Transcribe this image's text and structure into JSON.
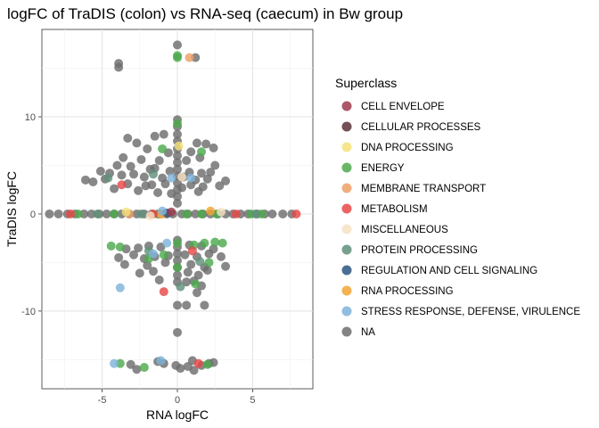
{
  "chart_data": {
    "type": "scatter",
    "title": "logFC of TraDIS (colon) vs RNA-seq (caecum) in Bw group",
    "xlabel": "RNA logFC",
    "ylabel": "TraDIS logFC",
    "xlim": [
      -9,
      9
    ],
    "ylim": [
      -18,
      19
    ],
    "xticks": [
      -5,
      0,
      5
    ],
    "yticks": [
      -10,
      0,
      10
    ],
    "xtick_labels": [
      "-5",
      "0",
      "5"
    ],
    "ytick_labels": [
      "-10",
      "0",
      "10"
    ],
    "grid": true,
    "legend": {
      "title": "Superclass",
      "position": "right",
      "entries": [
        {
          "name": "CELL ENVELOPE",
          "color": "#9E3A4D"
        },
        {
          "name": "CELLULAR PROCESSES",
          "color": "#5A3038"
        },
        {
          "name": "DNA PROCESSING",
          "color": "#F4E27A"
        },
        {
          "name": "ENERGY",
          "color": "#4DAA4D"
        },
        {
          "name": "MEMBRANE TRANSPORT",
          "color": "#EDA068"
        },
        {
          "name": "METABOLISM",
          "color": "#E84848"
        },
        {
          "name": "MISCELLANEOUS",
          "color": "#F5E3C3"
        },
        {
          "name": "PROTEIN PROCESSING",
          "color": "#5F917A"
        },
        {
          "name": "REGULATION AND CELL SIGNALING",
          "color": "#2B5580"
        },
        {
          "name": "RNA PROCESSING",
          "color": "#F2A534"
        },
        {
          "name": "STRESS RESPONSE, DEFENSE, VIRULENCE",
          "color": "#7FB3DB"
        },
        {
          "name": "NA",
          "color": "#6E6E6E"
        }
      ]
    },
    "series": [
      {
        "name": "NA",
        "points": [
          [
            0,
            17.4
          ],
          [
            -3.9,
            15.1
          ],
          [
            -3.9,
            15.5
          ],
          [
            1.2,
            16.1
          ],
          [
            0,
            9.7
          ],
          [
            0,
            9.0
          ],
          [
            0,
            8.2
          ],
          [
            0,
            7.5
          ],
          [
            0,
            6.7
          ],
          [
            0,
            6.0
          ],
          [
            0,
            5.3
          ],
          [
            0,
            4.6
          ],
          [
            0,
            3.9
          ],
          [
            0,
            3.2
          ],
          [
            0,
            2.5
          ],
          [
            0,
            1.8
          ],
          [
            0,
            1.1
          ],
          [
            -3.3,
            7.8
          ],
          [
            -2.7,
            7.3
          ],
          [
            -1.5,
            8.0
          ],
          [
            -0.9,
            8.2
          ],
          [
            1.3,
            7.3
          ],
          [
            1.9,
            7.2
          ],
          [
            2.4,
            6.8
          ],
          [
            -2.0,
            6.7
          ],
          [
            0.9,
            6.4
          ],
          [
            -0.6,
            6.3
          ],
          [
            -3.6,
            5.8
          ],
          [
            -2.4,
            5.6
          ],
          [
            -1.2,
            5.5
          ],
          [
            0.6,
            5.5
          ],
          [
            1.5,
            5.8
          ],
          [
            2.5,
            5.0
          ],
          [
            -4.0,
            5.0
          ],
          [
            -3.1,
            4.9
          ],
          [
            -1.8,
            4.6
          ],
          [
            -0.5,
            4.4
          ],
          [
            0.8,
            4.3
          ],
          [
            1.6,
            4.2
          ],
          [
            2.2,
            4.3
          ],
          [
            -5.1,
            4.4
          ],
          [
            -4.5,
            4.2
          ],
          [
            -3.7,
            4.0
          ],
          [
            -2.9,
            4.1
          ],
          [
            -2.2,
            3.8
          ],
          [
            -1.0,
            3.7
          ],
          [
            0.4,
            3.8
          ],
          [
            1.2,
            3.5
          ],
          [
            2.0,
            3.6
          ],
          [
            -5.6,
            3.3
          ],
          [
            -4.8,
            3.6
          ],
          [
            -3.3,
            3.1
          ],
          [
            -1.7,
            3.0
          ],
          [
            -0.8,
            3.1
          ],
          [
            0.9,
            3.0
          ],
          [
            1.7,
            2.8
          ],
          [
            -4.2,
            2.6
          ],
          [
            -2.6,
            2.4
          ],
          [
            -1.3,
            2.2
          ],
          [
            -0.4,
            2.1
          ],
          [
            1.4,
            2.3
          ],
          [
            2.8,
            2.9
          ],
          [
            3.2,
            3.4
          ],
          [
            -6.1,
            3.5
          ],
          [
            -2.1,
            2.9
          ],
          [
            -1.5,
            4.7
          ],
          [
            0.3,
            2.7
          ],
          [
            -8.5,
            0
          ],
          [
            -7.9,
            0
          ],
          [
            -7.3,
            0
          ],
          [
            -6.8,
            0
          ],
          [
            -6.2,
            0
          ],
          [
            -5.7,
            0
          ],
          [
            -5.2,
            0
          ],
          [
            -4.7,
            0
          ],
          [
            -4.2,
            0
          ],
          [
            -3.7,
            0
          ],
          [
            -3.2,
            0
          ],
          [
            -2.7,
            0
          ],
          [
            -2.2,
            0
          ],
          [
            -1.7,
            0
          ],
          [
            -1.2,
            0
          ],
          [
            -0.7,
            0
          ],
          [
            -0.3,
            0
          ],
          [
            0.3,
            0
          ],
          [
            0.7,
            0
          ],
          [
            1.2,
            0
          ],
          [
            1.7,
            0
          ],
          [
            2.2,
            0
          ],
          [
            2.7,
            0
          ],
          [
            3.2,
            0
          ],
          [
            3.7,
            0
          ],
          [
            4.2,
            0
          ],
          [
            4.7,
            0
          ],
          [
            5.3,
            0
          ],
          [
            5.8,
            0
          ],
          [
            6.3,
            0
          ],
          [
            7.0,
            0
          ],
          [
            7.6,
            0
          ],
          [
            0,
            -2.7
          ],
          [
            0,
            -3.4
          ],
          [
            0,
            -4.1
          ],
          [
            0,
            -4.8
          ],
          [
            0,
            -5.5
          ],
          [
            0,
            -6.3
          ],
          [
            0,
            -7.0
          ],
          [
            0,
            -9.4
          ],
          [
            0,
            -12.2
          ],
          [
            -3.4,
            -3.6
          ],
          [
            -2.6,
            -3.5
          ],
          [
            -1.9,
            -3.3
          ],
          [
            -1.1,
            -3.4
          ],
          [
            0.8,
            -3.2
          ],
          [
            1.6,
            -3.3
          ],
          [
            2.4,
            -3.6
          ],
          [
            -3.9,
            -4.5
          ],
          [
            -2.9,
            -4.2
          ],
          [
            -2.2,
            -4.6
          ],
          [
            -1.5,
            -4.4
          ],
          [
            -0.6,
            -4.3
          ],
          [
            0.5,
            -4.2
          ],
          [
            1.3,
            -4.4
          ],
          [
            2.1,
            -4.1
          ],
          [
            2.9,
            -4.4
          ],
          [
            -3.5,
            -5.2
          ],
          [
            -2.0,
            -5.3
          ],
          [
            -0.8,
            -5.0
          ],
          [
            0.9,
            -5.2
          ],
          [
            1.8,
            -5.5
          ],
          [
            3.2,
            -5.4
          ],
          [
            -2.5,
            -6.1
          ],
          [
            -1.6,
            -5.9
          ],
          [
            0.7,
            -6.0
          ],
          [
            1.4,
            -6.3
          ],
          [
            2.0,
            -5.8
          ],
          [
            -1.2,
            -6.8
          ],
          [
            0.6,
            -7.0
          ],
          [
            1.1,
            -6.9
          ],
          [
            1.6,
            -7.4
          ],
          [
            0.6,
            -9.4
          ],
          [
            1.8,
            -9.4
          ],
          [
            1.3,
            -8.1
          ],
          [
            -3.1,
            -15.5
          ],
          [
            -2.7,
            -16.0
          ],
          [
            -0.9,
            -15.4
          ],
          [
            -0.1,
            -15.6
          ],
          [
            0.2,
            -15.9
          ],
          [
            1.0,
            -15.1
          ],
          [
            1.1,
            -16.1
          ],
          [
            1.6,
            -15.6
          ],
          [
            2.1,
            -15.4
          ],
          [
            0.7,
            -15.7
          ],
          [
            2.4,
            -15.3
          ],
          [
            -1.3,
            -15.2
          ]
        ]
      },
      {
        "name": "ENERGY",
        "points": [
          [
            0,
            16.3
          ],
          [
            0,
            16.1
          ],
          [
            0,
            9.3
          ],
          [
            -1.0,
            6.7
          ],
          [
            1.6,
            6.4
          ],
          [
            -4.2,
            0
          ],
          [
            -6.6,
            0
          ],
          [
            -1.3,
            0
          ],
          [
            0.6,
            0
          ],
          [
            1.6,
            0
          ],
          [
            2.6,
            0
          ],
          [
            4.9,
            0
          ],
          [
            5.6,
            0
          ],
          [
            -4.4,
            -3.3
          ],
          [
            -3.8,
            -3.4
          ],
          [
            0,
            -3.0
          ],
          [
            1.1,
            -3.2
          ],
          [
            1.8,
            -3.0
          ],
          [
            2.5,
            -2.9
          ],
          [
            3.0,
            -3.0
          ],
          [
            -1.9,
            -4.6
          ],
          [
            2.1,
            -5.0
          ],
          [
            -0.9,
            -4.2
          ],
          [
            0,
            -5.5
          ],
          [
            1.2,
            -7.2
          ],
          [
            -3.8,
            -15.4
          ],
          [
            -2.2,
            -15.8
          ],
          [
            2.0,
            -15.5
          ]
        ]
      },
      {
        "name": "MEMBRANE TRANSPORT",
        "points": [
          [
            0.8,
            16.1
          ],
          [
            -1.1,
            0
          ],
          [
            -3.2,
            0
          ]
        ]
      },
      {
        "name": "METABOLISM",
        "points": [
          [
            -7.1,
            0
          ],
          [
            -3.7,
            3.0
          ],
          [
            -1.6,
            0
          ],
          [
            7.9,
            0
          ],
          [
            3.9,
            0
          ],
          [
            1.0,
            -3.8
          ],
          [
            -0.9,
            -8.0
          ],
          [
            1.4,
            -15.4
          ]
        ]
      },
      {
        "name": "DNA PROCESSING",
        "points": [
          [
            0.1,
            7.0
          ],
          [
            -3.4,
            0.2
          ]
        ]
      },
      {
        "name": "MISCELLANEOUS",
        "points": [
          [
            0.3,
            3.8
          ],
          [
            -1.8,
            -0.2
          ],
          [
            2.9,
            0.2
          ]
        ]
      },
      {
        "name": "PROTEIN PROCESSING",
        "points": [
          [
            -4.6,
            3.7
          ],
          [
            -1.6,
            4.1
          ],
          [
            -5.3,
            0
          ],
          [
            -2.4,
            0
          ],
          [
            5.2,
            0
          ],
          [
            0.2,
            -7.5
          ],
          [
            -1.9,
            -3.8
          ],
          [
            1.5,
            -4.9
          ]
        ]
      },
      {
        "name": "RNA PROCESSING",
        "points": [
          [
            -1.0,
            0
          ],
          [
            2.2,
            0.3
          ]
        ]
      },
      {
        "name": "REGULATION AND CELL SIGNALING",
        "points": [
          [
            -0.7,
            0.1
          ]
        ]
      },
      {
        "name": "STRESS RESPONSE, DEFENSE, VIRULENCE",
        "points": [
          [
            -0.4,
            3.7
          ],
          [
            0.9,
            3.7
          ],
          [
            -1.0,
            0.3
          ],
          [
            -0.7,
            -3.0
          ],
          [
            -3.8,
            -7.6
          ],
          [
            -4.2,
            -15.4
          ],
          [
            -1.1,
            -15.1
          ],
          [
            -1.6,
            -4.1
          ]
        ]
      },
      {
        "name": "CELL ENVELOPE",
        "points": [
          [
            -0.4,
            0.2
          ]
        ]
      }
    ]
  }
}
